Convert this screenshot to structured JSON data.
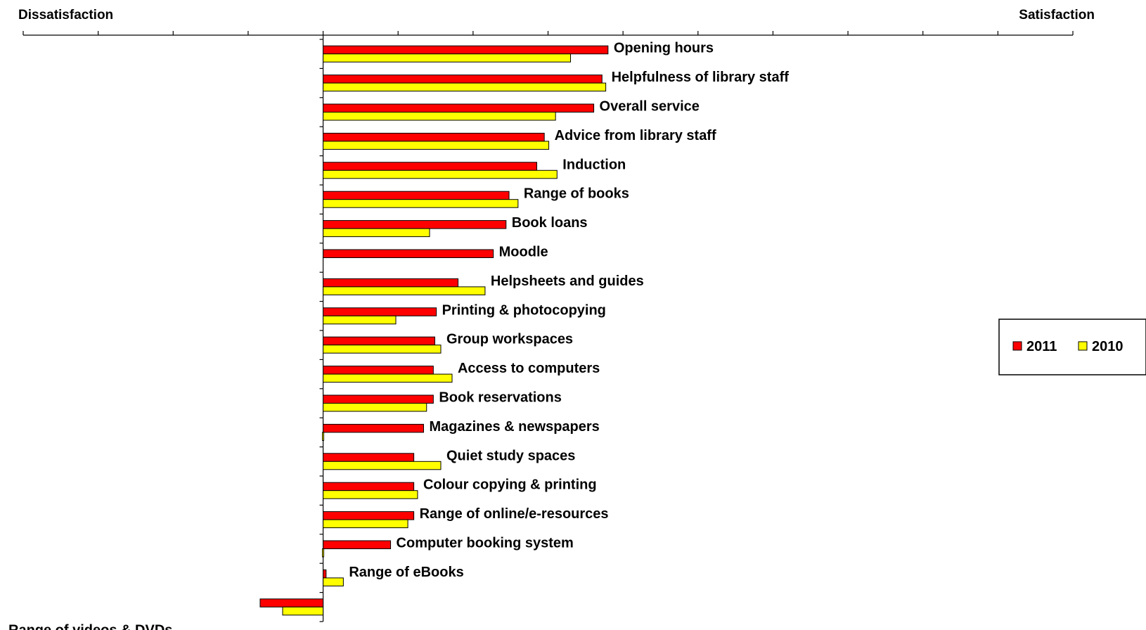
{
  "chart_data": {
    "type": "bar",
    "orientation": "horizontal",
    "left_label": "Dissatisfaction",
    "right_label": "Satisfaction",
    "xlim": [
      -2,
      5
    ],
    "x_tick_step": 0.5,
    "categories": [
      "Opening hours",
      "Helpfulness of library staff",
      "Overall service",
      "Advice from library staff",
      "Induction",
      "Range of books",
      "Book loans",
      "Moodle",
      "Helpsheets and guides",
      "Printing & photocopying",
      "Group workspaces",
      "Access to computers",
      "Book reservations",
      "Magazines & newspapers",
      "Quiet study spaces",
      "Colour copying & printing",
      "Range of online/e-resources",
      "Computer booking system",
      "Range of eBooks",
      "Range of videos & DVDs"
    ],
    "series": [
      {
        "name": "2011",
        "color": "#ff0000",
        "values": [
          1.9,
          1.86,
          1.805,
          1.475,
          1.425,
          1.24,
          1.22,
          1.135,
          0.9,
          0.755,
          0.745,
          0.735,
          0.735,
          0.67,
          0.605,
          0.605,
          0.605,
          0.45,
          0.02,
          -0.42
        ]
      },
      {
        "name": "2010",
        "color": "#ffff00",
        "values": [
          1.65,
          1.885,
          1.55,
          1.505,
          1.56,
          1.3,
          0.71,
          null,
          1.08,
          0.485,
          0.785,
          0.86,
          0.69,
          -0.005,
          0.785,
          0.63,
          0.565,
          -0.005,
          0.135,
          -0.27
        ]
      }
    ],
    "legend_position": "right",
    "grid": false
  }
}
